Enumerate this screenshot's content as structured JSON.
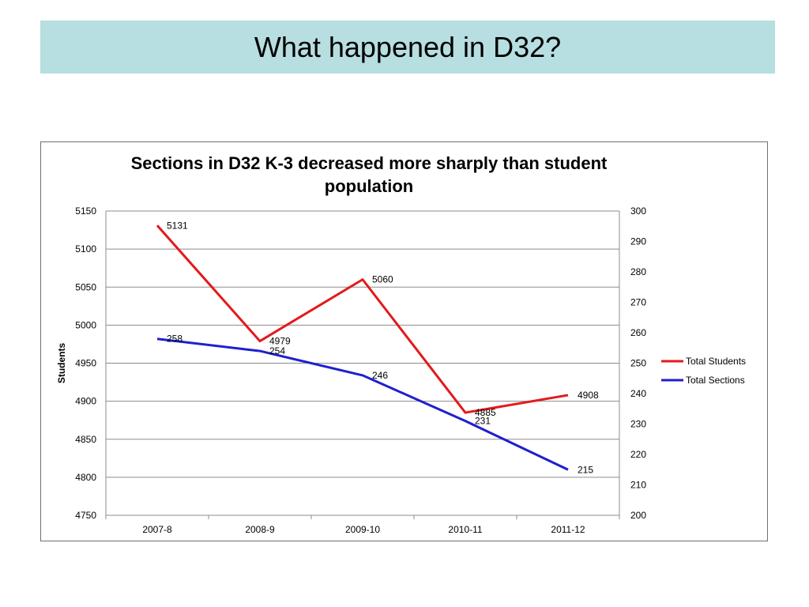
{
  "slide": {
    "title": "What happened in D32?"
  },
  "colors": {
    "title_band": "#b7dee0",
    "students": "#e31a1c",
    "sections": "#1f1fd0",
    "grid": "#8c8c8c"
  },
  "chart_data": {
    "type": "line",
    "title": "Sections in D32 K-3 decreased more sharply than student population",
    "categories": [
      "2007-8",
      "2008-9",
      "2009-10",
      "2010-11",
      "2011-12"
    ],
    "ylabel": "Students",
    "ylabel_right": "",
    "ylim": [
      4750,
      5150
    ],
    "ylim_right": [
      200,
      300
    ],
    "yticks": [
      4750,
      4800,
      4850,
      4900,
      4950,
      5000,
      5050,
      5100,
      5150
    ],
    "yticks_right": [
      200,
      210,
      220,
      230,
      240,
      250,
      260,
      270,
      280,
      290,
      300
    ],
    "grid": true,
    "legend_position": "right",
    "series": [
      {
        "name": "Total Students",
        "axis": "left",
        "color": "#e31a1c",
        "values": [
          5131,
          4979,
          5060,
          4885,
          4908
        ]
      },
      {
        "name": "Total Sections",
        "axis": "right",
        "color": "#1f1fd0",
        "values": [
          258,
          254,
          246,
          231,
          215
        ]
      }
    ]
  }
}
